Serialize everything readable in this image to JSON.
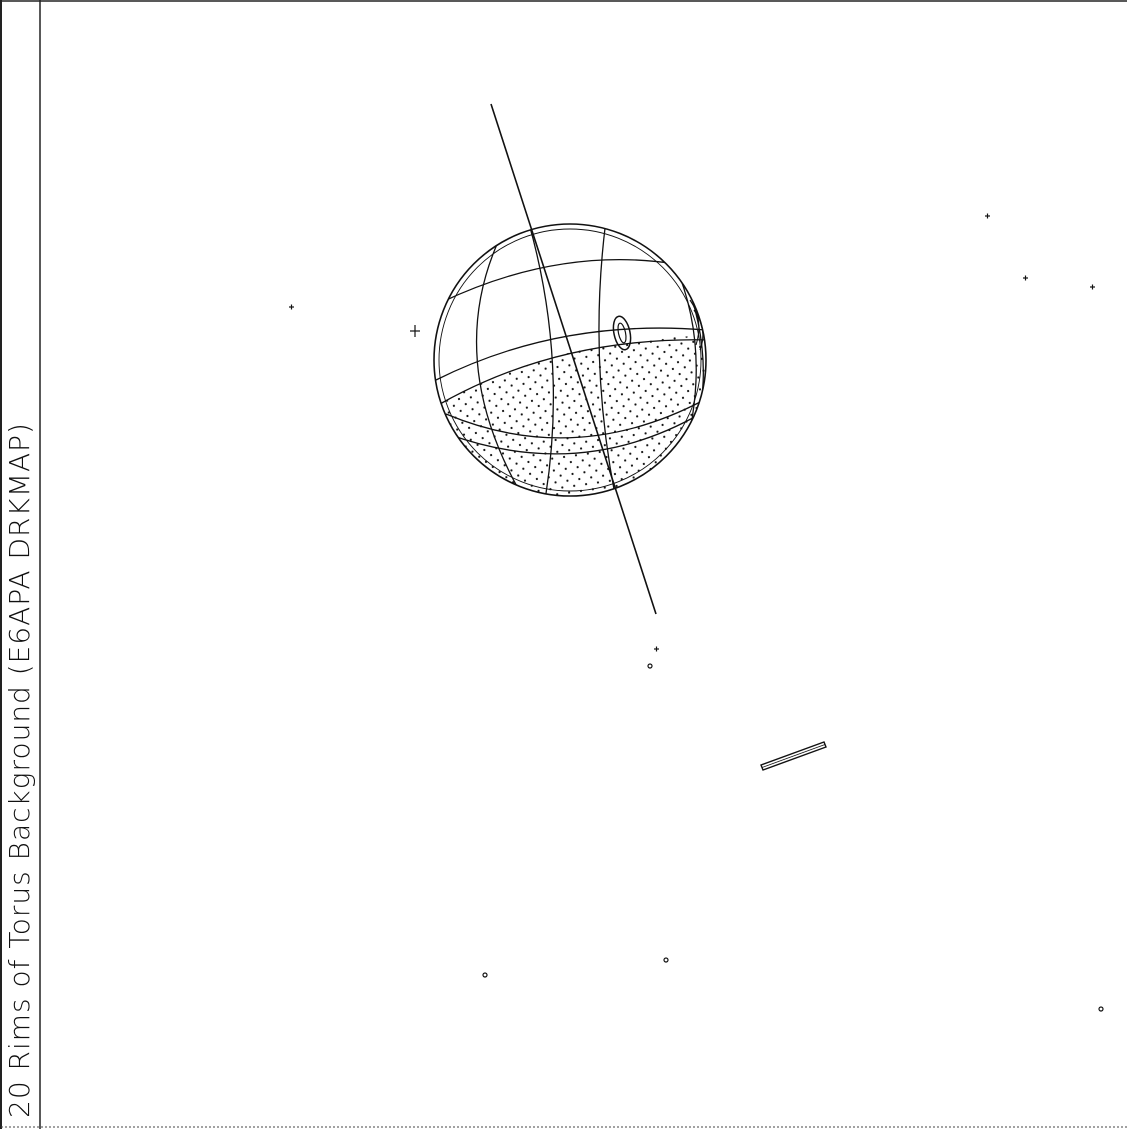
{
  "title": "20 Rims of Torus Background (E6APA  DRKMAP)",
  "colors": {
    "background": "#ffffff",
    "ink": "#111111",
    "frame": "#222222"
  },
  "scene": {
    "planet": "sphere-with-graticule",
    "spin_axis": true,
    "shaded_region": "dotted-night-side",
    "surface_marker": "ellipse-spot",
    "spacecraft": "elongated-rectangle",
    "star_markers": "small-plus-and-dot"
  }
}
